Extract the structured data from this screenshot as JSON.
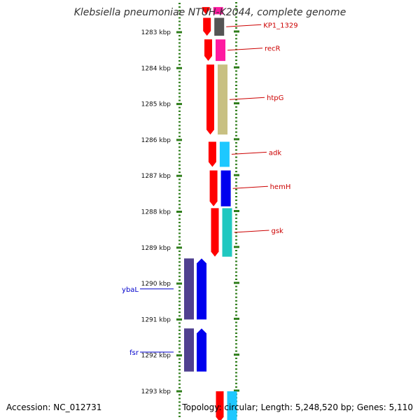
{
  "title": "Klebsiella pneumoniae NTUH-K2044, complete genome",
  "footer": {
    "accession": "Accession: NC_012731",
    "topology": "Topology: circular; Length: 5,248,520 bp; Genes: 5,110"
  },
  "colors": {
    "tick": "#2e7d1a",
    "backbone": "#888888",
    "label_red": "#cc0000",
    "label_blue": "#0000cc",
    "hot_pink": "#ff1aa0",
    "dark_gray": "#555555",
    "olive": "#c8c082",
    "sky_blue": "#1ec8ff",
    "blue": "#0000ee",
    "teal": "#20c8c0",
    "indigo": "#504090",
    "red": "#ff0000"
  },
  "ruler": {
    "unit": "kbp",
    "ticks": [
      {
        "kbp": 1283,
        "label": "1283 kbp"
      },
      {
        "kbp": 1284,
        "label": "1284 kbp"
      },
      {
        "kbp": 1285,
        "label": "1285 kbp"
      },
      {
        "kbp": 1286,
        "label": "1286 kbp"
      },
      {
        "kbp": 1287,
        "label": "1287 kbp"
      },
      {
        "kbp": 1288,
        "label": "1288 kbp"
      },
      {
        "kbp": 1289,
        "label": "1289 kbp"
      },
      {
        "kbp": 1290,
        "label": "1290 kbp"
      },
      {
        "kbp": 1291,
        "label": "1291 kbp"
      },
      {
        "kbp": 1292,
        "label": "1292 kbp"
      },
      {
        "kbp": 1293,
        "label": "1293 kbp"
      }
    ]
  },
  "genes": [
    {
      "name": "KP1_1329",
      "start": 1282.6,
      "end": 1283.1,
      "strand": "+",
      "color": "#555555"
    },
    {
      "name": "recR",
      "start": 1283.2,
      "end": 1283.8,
      "strand": "+",
      "color": "#ff1aa0"
    },
    {
      "name": "htpG",
      "start": 1283.9,
      "end": 1285.85,
      "strand": "+",
      "color": "#c8c082"
    },
    {
      "name": "adk",
      "start": 1286.05,
      "end": 1286.75,
      "strand": "+",
      "color": "#1ec8ff"
    },
    {
      "name": "hemH",
      "start": 1286.85,
      "end": 1287.85,
      "strand": "+",
      "color": "#0000ee"
    },
    {
      "name": "gsk",
      "start": 1287.9,
      "end": 1289.25,
      "strand": "+",
      "color": "#20c8c0"
    },
    {
      "name": "ybaL",
      "start": 1289.3,
      "end": 1291.0,
      "strand": "-",
      "color": "#0000ee"
    },
    {
      "name": "fsr",
      "start": 1291.25,
      "end": 1292.45,
      "strand": "-",
      "color": "#0000ee"
    },
    {
      "name": "",
      "start": 1282.3,
      "end": 1282.5,
      "strand": "+",
      "color": "#ff1aa0"
    },
    {
      "name": "",
      "start": 1293.0,
      "end": 1293.85,
      "strand": "+",
      "color": "#1ec8ff"
    }
  ],
  "gene_labels": [
    {
      "gene": "KP1_1329",
      "text": "KP1_1329",
      "strand": "+"
    },
    {
      "gene": "recR",
      "text": "recR",
      "strand": "+"
    },
    {
      "gene": "htpG",
      "text": "htpG",
      "strand": "+"
    },
    {
      "gene": "adk",
      "text": "adk",
      "strand": "+"
    },
    {
      "gene": "hemH",
      "text": "hemH",
      "strand": "+"
    },
    {
      "gene": "gsk",
      "text": "gsk",
      "strand": "+"
    },
    {
      "gene": "ybaL",
      "text": "ybaL",
      "strand": "-"
    },
    {
      "gene": "fsr",
      "text": "fsr",
      "strand": "-"
    }
  ]
}
